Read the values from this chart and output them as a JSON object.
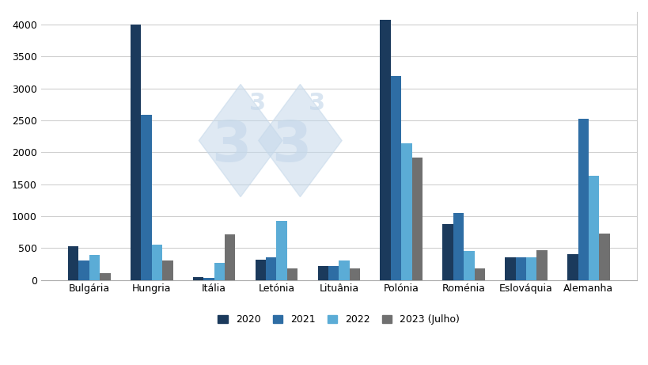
{
  "categories": [
    "Bulgária",
    "Hungria",
    "Itália",
    "Letónia",
    "Lituânia",
    "Polónia",
    "Roménia",
    "Eslováquia",
    "Alemanha"
  ],
  "series": {
    "2020": [
      530,
      4000,
      50,
      320,
      220,
      4080,
      870,
      360,
      400
    ],
    "2021": [
      310,
      2590,
      35,
      360,
      220,
      3200,
      1050,
      360,
      2520
    ],
    "2022": [
      390,
      550,
      270,
      920,
      300,
      2140,
      460,
      360,
      1630
    ],
    "2023 (Julho)": [
      110,
      310,
      720,
      185,
      180,
      1920,
      185,
      470,
      730
    ]
  },
  "colors": {
    "2020": "#1b3a5c",
    "2021": "#2e6da4",
    "2022": "#5bacd6",
    "2023 (Julho)": "#707070"
  },
  "legend_labels": [
    "2020",
    "2021",
    "2022",
    "2023 (Julho)"
  ],
  "ylim": [
    0,
    4200
  ],
  "yticks": [
    0,
    500,
    1000,
    1500,
    2000,
    2500,
    3000,
    3500,
    4000
  ],
  "background_color": "#ffffff",
  "grid_color": "#d0d0d0",
  "bar_width": 0.17,
  "watermark_color": "#c5d8ea",
  "watermark_alpha": 0.55
}
